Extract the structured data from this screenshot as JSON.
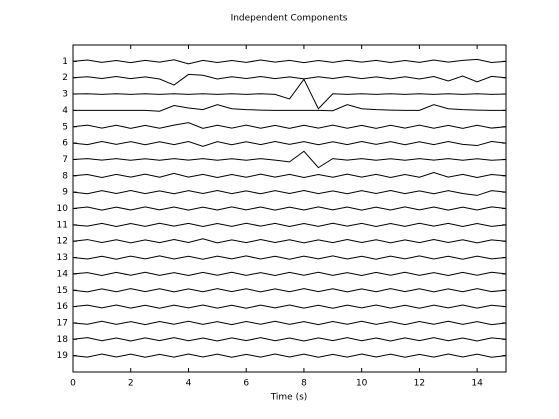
{
  "chart_data": {
    "type": "line",
    "title": "Independent Components",
    "x_label": "Time (s)",
    "x": [
      0,
      0.5,
      1,
      1.5,
      2,
      2.5,
      3,
      3.5,
      4,
      4.5,
      5,
      5.5,
      6,
      6.5,
      7,
      7.5,
      8,
      8.5,
      9,
      9.5,
      10,
      10.5,
      11,
      11.5,
      12,
      12.5,
      13,
      13.5,
      14,
      14.5,
      15
    ],
    "xlim": [
      0,
      15
    ],
    "xticks": [
      0,
      2,
      4,
      6,
      8,
      10,
      12,
      14
    ],
    "ylim": [
      0,
      20
    ],
    "series": [
      {
        "name": "1",
        "color": "#000000",
        "values": [
          0,
          0.08,
          -0.06,
          0.05,
          -0.08,
          0.06,
          -0.05,
          0.1,
          -0.15,
          0.06,
          -0.07,
          0.05,
          -0.06,
          0.08,
          -0.05,
          0.06,
          -0.08,
          0.05,
          -0.06,
          0.07,
          -0.05,
          0.06,
          -0.07,
          0.05,
          -0.06,
          0.08,
          -0.05,
          0.06,
          0.12,
          -0.07,
          0
        ]
      },
      {
        "name": "2",
        "color": "#000000",
        "values": [
          0,
          0.06,
          -0.05,
          0.07,
          -0.06,
          0.05,
          -0.08,
          -0.45,
          0.2,
          0.15,
          -0.08,
          0.06,
          -0.05,
          0.07,
          -0.06,
          0.05,
          -0.07,
          0.06,
          -0.05,
          0.07,
          -0.06,
          0.05,
          -0.07,
          0.06,
          -0.08,
          0.07,
          -0.2,
          0.1,
          -0.25,
          0.08,
          0
        ]
      },
      {
        "name": "3",
        "color": "#000000",
        "values": [
          0,
          0.02,
          -0.02,
          0.02,
          -0.02,
          0.02,
          -0.02,
          0.02,
          -0.02,
          0.02,
          -0.02,
          0.02,
          -0.02,
          0.02,
          -0.02,
          -0.3,
          0.9,
          -0.9,
          0.02,
          -0.02,
          0.02,
          -0.02,
          0.02,
          -0.02,
          0.02,
          -0.02,
          0.02,
          -0.02,
          0.02,
          -0.02,
          0
        ]
      },
      {
        "name": "4",
        "color": "#000000",
        "values": [
          0,
          0,
          0,
          0,
          0,
          0,
          -0.05,
          0.3,
          0.15,
          0.05,
          0.35,
          0.1,
          0.05,
          0.02,
          0,
          0,
          0,
          0,
          -0.02,
          0.35,
          0.1,
          0.05,
          0.02,
          0,
          0,
          0.35,
          0.1,
          0.05,
          0.02,
          0,
          0
        ]
      },
      {
        "name": "5",
        "color": "#000000",
        "values": [
          0,
          0.1,
          -0.08,
          0.09,
          -0.1,
          0.08,
          -0.09,
          0.1,
          0.25,
          -0.1,
          0.09,
          -0.08,
          0.1,
          -0.09,
          0.08,
          -0.1,
          0.09,
          -0.08,
          0.1,
          -0.09,
          0.08,
          -0.1,
          0.09,
          -0.08,
          0.1,
          -0.09,
          0.08,
          -0.1,
          0.09,
          -0.08,
          0
        ]
      },
      {
        "name": "6",
        "color": "#000000",
        "values": [
          0,
          -0.09,
          0.1,
          -0.08,
          0.09,
          -0.1,
          0.08,
          -0.09,
          0.1,
          -0.2,
          0.09,
          -0.1,
          0.08,
          -0.09,
          0.1,
          -0.08,
          0.09,
          -0.1,
          0.08,
          -0.09,
          0.1,
          -0.08,
          0.09,
          -0.1,
          0.08,
          -0.09,
          0.1,
          -0.08,
          -0.15,
          0.1,
          0
        ]
      },
      {
        "name": "7",
        "color": "#000000",
        "values": [
          0,
          0.05,
          -0.04,
          0.05,
          -0.05,
          0.04,
          -0.05,
          0.05,
          -0.04,
          0.05,
          -0.05,
          0.04,
          -0.05,
          0.05,
          -0.04,
          -0.15,
          0.5,
          -0.5,
          0.05,
          -0.04,
          0.05,
          -0.05,
          0.04,
          -0.05,
          0.05,
          -0.04,
          0.05,
          -0.05,
          0.04,
          -0.05,
          0
        ]
      },
      {
        "name": "8",
        "color": "#000000",
        "values": [
          0,
          0.08,
          -0.1,
          0.09,
          -0.08,
          0.1,
          -0.09,
          0.15,
          -0.08,
          0.09,
          -0.1,
          0.08,
          -0.09,
          0.1,
          -0.08,
          0.09,
          -0.1,
          0.08,
          -0.09,
          0.1,
          -0.08,
          0.09,
          -0.1,
          0.08,
          -0.09,
          0.2,
          -0.08,
          0.09,
          -0.1,
          0.08,
          0
        ]
      },
      {
        "name": "9",
        "color": "#000000",
        "values": [
          0,
          -0.1,
          0.09,
          -0.08,
          0.1,
          -0.09,
          0.08,
          -0.1,
          0.09,
          -0.08,
          0.1,
          -0.09,
          0.08,
          -0.1,
          0.09,
          -0.08,
          0.1,
          -0.09,
          0.08,
          -0.1,
          0.09,
          -0.08,
          0.1,
          -0.09,
          0.08,
          -0.1,
          0.09,
          -0.08,
          -0.2,
          0.09,
          0
        ]
      },
      {
        "name": "10",
        "color": "#000000",
        "values": [
          0,
          0.09,
          -0.1,
          0.08,
          -0.09,
          0.1,
          -0.08,
          0.09,
          -0.1,
          0.08,
          -0.09,
          0.1,
          -0.08,
          0.09,
          -0.1,
          0.08,
          -0.09,
          0.1,
          -0.08,
          0.09,
          -0.1,
          0.08,
          -0.09,
          0.1,
          -0.08,
          0.09,
          -0.1,
          0.08,
          -0.09,
          0.1,
          0
        ]
      },
      {
        "name": "11",
        "color": "#000000",
        "values": [
          0,
          -0.08,
          0.09,
          -0.1,
          0.08,
          -0.09,
          0.1,
          -0.08,
          0.09,
          -0.1,
          0.08,
          -0.09,
          0.1,
          -0.08,
          0.09,
          -0.1,
          0.08,
          -0.09,
          0.1,
          -0.08,
          0.09,
          -0.1,
          0.08,
          -0.09,
          0.1,
          -0.08,
          0.09,
          -0.1,
          0.08,
          -0.09,
          0
        ]
      },
      {
        "name": "12",
        "color": "#000000",
        "values": [
          0,
          0.1,
          -0.08,
          0.09,
          -0.1,
          0.08,
          -0.09,
          0.1,
          -0.08,
          0.15,
          -0.1,
          0.08,
          -0.09,
          0.1,
          -0.08,
          0.09,
          -0.1,
          0.08,
          -0.09,
          0.1,
          -0.08,
          0.09,
          -0.1,
          0.08,
          -0.09,
          0.1,
          -0.08,
          0.09,
          -0.1,
          0.08,
          0
        ]
      },
      {
        "name": "13",
        "color": "#000000",
        "values": [
          0,
          -0.09,
          0.08,
          -0.1,
          0.09,
          -0.08,
          0.1,
          -0.09,
          0.08,
          -0.1,
          0.09,
          -0.08,
          0.1,
          -0.09,
          0.08,
          -0.1,
          0.09,
          -0.08,
          0.1,
          -0.09,
          0.08,
          -0.1,
          0.09,
          -0.08,
          0.1,
          -0.09,
          0.08,
          -0.1,
          0.09,
          -0.08,
          0
        ]
      },
      {
        "name": "14",
        "color": "#000000",
        "values": [
          0,
          0.08,
          -0.1,
          0.09,
          -0.08,
          0.1,
          -0.09,
          0.08,
          -0.1,
          0.09,
          -0.08,
          0.1,
          -0.09,
          0.08,
          -0.1,
          0.09,
          -0.08,
          0.1,
          -0.09,
          0.08,
          -0.1,
          0.09,
          -0.08,
          0.1,
          -0.09,
          0.08,
          -0.1,
          0.09,
          -0.08,
          0.1,
          0
        ]
      },
      {
        "name": "15",
        "color": "#000000",
        "values": [
          0,
          -0.1,
          0.08,
          -0.09,
          0.1,
          -0.08,
          0.09,
          -0.1,
          0.08,
          -0.09,
          0.1,
          -0.08,
          0.09,
          -0.1,
          0.08,
          -0.09,
          0.1,
          -0.08,
          0.09,
          -0.1,
          0.08,
          -0.09,
          0.1,
          -0.08,
          0.09,
          -0.1,
          0.08,
          -0.09,
          0.1,
          -0.08,
          0
        ]
      },
      {
        "name": "16",
        "color": "#000000",
        "values": [
          0,
          0.09,
          -0.08,
          0.1,
          -0.09,
          0.08,
          -0.1,
          0.09,
          -0.08,
          0.1,
          -0.09,
          0.08,
          -0.1,
          0.09,
          -0.08,
          0.1,
          -0.09,
          0.08,
          -0.1,
          0.09,
          -0.08,
          0.1,
          -0.09,
          0.08,
          -0.1,
          0.09,
          -0.08,
          0.1,
          -0.09,
          0.08,
          0
        ]
      },
      {
        "name": "17",
        "color": "#000000",
        "values": [
          0,
          -0.08,
          0.1,
          -0.09,
          0.08,
          -0.1,
          0.09,
          -0.08,
          0.1,
          -0.09,
          0.08,
          -0.1,
          0.09,
          -0.08,
          0.1,
          -0.09,
          0.08,
          -0.1,
          0.09,
          -0.08,
          0.1,
          -0.09,
          0.08,
          -0.1,
          0.09,
          -0.08,
          0.1,
          -0.09,
          0.08,
          -0.1,
          0
        ]
      },
      {
        "name": "18",
        "color": "#000000",
        "values": [
          0,
          0.1,
          -0.09,
          0.08,
          -0.1,
          0.09,
          -0.08,
          0.1,
          -0.09,
          0.08,
          -0.1,
          0.09,
          -0.08,
          0.1,
          -0.09,
          0.08,
          -0.1,
          0.09,
          -0.08,
          0.1,
          -0.09,
          0.08,
          -0.1,
          0.09,
          -0.08,
          0.1,
          -0.09,
          0.08,
          -0.1,
          0.09,
          0
        ]
      },
      {
        "name": "19",
        "color": "#000000",
        "values": [
          0,
          -0.09,
          0.1,
          -0.08,
          0.09,
          -0.1,
          0.08,
          -0.09,
          0.1,
          -0.08,
          0.09,
          -0.1,
          0.08,
          -0.09,
          0.1,
          -0.08,
          0.09,
          -0.1,
          0.08,
          -0.09,
          0.1,
          -0.08,
          0.09,
          -0.1,
          0.08,
          -0.09,
          0.1,
          -0.08,
          0.09,
          -0.1,
          0
        ]
      }
    ]
  }
}
